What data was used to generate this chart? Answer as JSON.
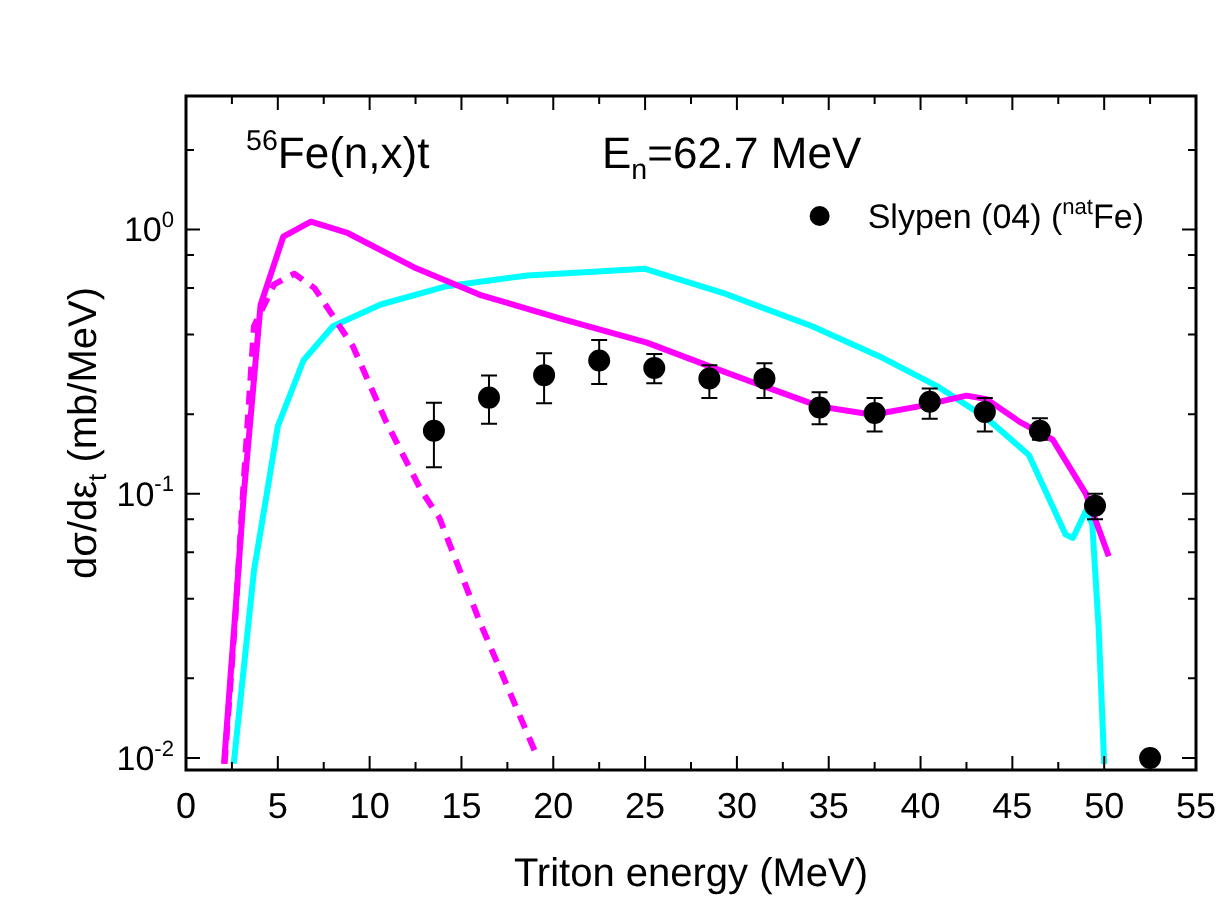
{
  "chart_data": {
    "type": "line",
    "xlabel": "Triton energy (MeV)",
    "ylabel": "dσ/dε$_{t}$ (mb/MeV)",
    "annotations": [
      "$^{56}$Fe(n,x)t",
      "E$_{n}$=62.7 MeV"
    ],
    "log": "y",
    "grid": false,
    "legend": "top right",
    "xlim": [
      0,
      55
    ],
    "xticks": [
      0,
      {
        "value": 2.5,
        "label": null
      },
      5,
      {
        "value": 7.5,
        "label": null
      },
      10,
      {
        "value": 12.5,
        "label": null
      },
      15,
      {
        "value": 17.5,
        "label": null
      },
      20,
      {
        "value": 22.5,
        "label": null
      },
      25,
      {
        "value": 27.5,
        "label": null
      },
      30,
      {
        "value": 32.5,
        "label": null
      },
      35,
      {
        "value": 37.5,
        "label": null
      },
      40,
      {
        "value": 42.5,
        "label": null
      },
      45,
      {
        "value": 47.5,
        "label": null
      },
      50,
      {
        "value": 52.5,
        "label": null
      },
      55
    ],
    "ylim": [
      0.009,
      3.2
    ],
    "yticks": [
      {
        "value": 0.01,
        "label": "10$^{-2}$"
      },
      {
        "value": 0.02,
        "label": null
      },
      {
        "value": 0.04,
        "label": null
      },
      {
        "value": 0.06,
        "label": null
      },
      {
        "value": 0.08,
        "label": null
      },
      {
        "value": 0.1,
        "label": "10$^{-1}$"
      },
      {
        "value": 0.2,
        "label": null
      },
      {
        "value": 0.4,
        "label": null
      },
      {
        "value": 0.6,
        "label": null
      },
      {
        "value": 0.8,
        "label": null
      },
      {
        "value": 1,
        "label": "10$^{0}$"
      },
      {
        "value": 2,
        "label": null
      }
    ],
    "series": [
      {
        "name": "Slypen (04) ($^{nat}$Fe)",
        "type": "scatter",
        "marker": "circle",
        "color": "#000000",
        "x": [
          13.5,
          16.5,
          19.5,
          22.5,
          25.5,
          28.5,
          31.5,
          34.5,
          37.5,
          40.5,
          43.5,
          46.5,
          49.5,
          52.5
        ],
        "values": [
          0.173,
          0.231,
          0.281,
          0.319,
          0.299,
          0.273,
          0.273,
          0.212,
          0.202,
          0.223,
          0.204,
          0.173,
          0.09,
          0.01
        ],
        "errors": [
          [
            0.126,
            0.221
          ],
          [
            0.184,
            0.28
          ],
          [
            0.22,
            0.34
          ],
          [
            0.26,
            0.382
          ],
          [
            0.262,
            0.338
          ],
          [
            0.23,
            0.306
          ],
          [
            0.23,
            0.312
          ],
          [
            0.183,
            0.242
          ],
          [
            0.172,
            0.23
          ],
          [
            0.192,
            0.25
          ],
          [
            0.172,
            0.23
          ],
          [
            0.16,
            0.193
          ],
          [
            0.08,
            0.1
          ],
          null
        ]
      },
      {
        "line_style": "solid",
        "marker": "none",
        "color": "#ff00ff",
        "x": [
          2.07,
          2.7,
          3.15,
          4.06,
          5.3,
          6.8,
          8.8,
          12.4,
          16.0,
          20.4,
          25.1,
          28.7,
          31.6,
          34.5,
          37.4,
          39.9,
          42.5,
          43.6,
          45.4,
          47.2,
          49.0,
          50.25
        ],
        "values": [
          0.0095,
          0.0366,
          0.1,
          0.518,
          0.94,
          1.07,
          0.97,
          0.72,
          0.566,
          0.46,
          0.373,
          0.3,
          0.253,
          0.214,
          0.199,
          0.214,
          0.235,
          0.228,
          0.187,
          0.16,
          0.1,
          0.058
        ]
      },
      {
        "line_style": "dashed",
        "marker": "none",
        "color": "#ff00ff",
        "x": [
          2.1,
          2.7,
          3.1,
          3.7,
          4.8,
          5.9,
          7.0,
          9.1,
          10.9,
          12.8,
          13.8,
          16.0,
          19.1
        ],
        "values": [
          0.0095,
          0.035,
          0.1,
          0.43,
          0.62,
          0.68,
          0.6,
          0.36,
          0.187,
          0.103,
          0.081,
          0.0327,
          0.0102
        ]
      },
      {
        "line_style": "solid",
        "marker": "none",
        "color": "#00ffff",
        "x": [
          2.6,
          3.7,
          4.4,
          5.0,
          6.4,
          8.0,
          10.6,
          14.2,
          18.6,
          25.0,
          29.4,
          34.1,
          37.8,
          41.0,
          43.6,
          45.9,
          47.9,
          48.3,
          49.0,
          49.35,
          49.7,
          50.0
        ],
        "values": [
          0.0095,
          0.051,
          0.1,
          0.18,
          0.32,
          0.43,
          0.52,
          0.61,
          0.67,
          0.71,
          0.57,
          0.43,
          0.33,
          0.253,
          0.193,
          0.14,
          0.07,
          0.068,
          0.086,
          0.077,
          0.031,
          0.0095
        ]
      }
    ]
  }
}
